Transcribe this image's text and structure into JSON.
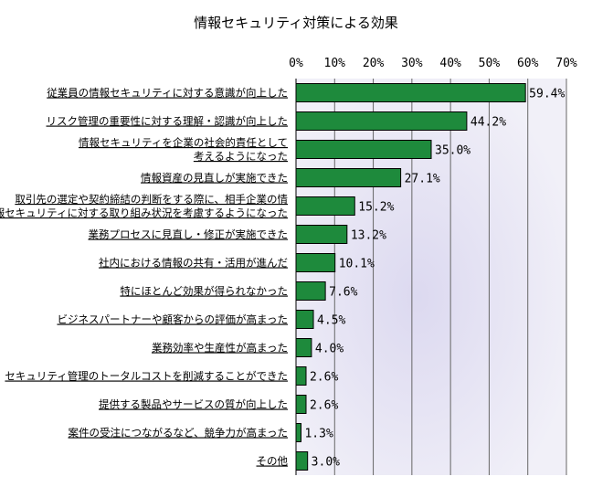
{
  "chart_data": {
    "type": "bar",
    "orientation": "horizontal",
    "title": "情報セキュリティ対策による効果",
    "xlim": [
      0,
      70
    ],
    "x_ticks": [
      "0%",
      "10%",
      "20%",
      "30%",
      "40%",
      "50%",
      "60%",
      "70%"
    ],
    "grid": true,
    "bar_color": "#1e8a3c",
    "categories": [
      [
        "従業員の情報セキュリティに対する意識が向上した"
      ],
      [
        "リスク管理の重要性に対する理解・認識が向上した"
      ],
      [
        "情報セキュリティを企業の社会的責任として",
        "考えるようになった"
      ],
      [
        "情報資産の見直しが実施できた"
      ],
      [
        "取引先の選定や契約締結の判断をする際に、相手企業の情",
        "報セキュリティに対する取り組み状況を考慮するようになった"
      ],
      [
        "業務プロセスに見直し・修正が実施できた"
      ],
      [
        "社内における情報の共有・活用が進んだ"
      ],
      [
        "特にほとんど効果が得られなかった"
      ],
      [
        "ビジネスパートナーや顧客からの評価が高まった"
      ],
      [
        "業務効率や生産性が高まった"
      ],
      [
        "セキュリティ管理のトータルコストを削減することができた"
      ],
      [
        "提供する製品やサービスの質が向上した"
      ],
      [
        "案件の受注につながるなど、競争力が高まった"
      ],
      [
        "その他"
      ]
    ],
    "values": [
      59.4,
      44.2,
      35.0,
      27.1,
      15.2,
      13.2,
      10.1,
      7.6,
      4.5,
      4.0,
      2.6,
      2.6,
      1.3,
      3.0
    ],
    "value_labels": [
      "59.4%",
      "44.2%",
      "35.0%",
      "27.1%",
      "15.2%",
      "13.2%",
      "10.1%",
      "7.6%",
      "4.5%",
      "4.0%",
      "2.6%",
      "2.6%",
      "1.3%",
      "3.0%"
    ]
  }
}
